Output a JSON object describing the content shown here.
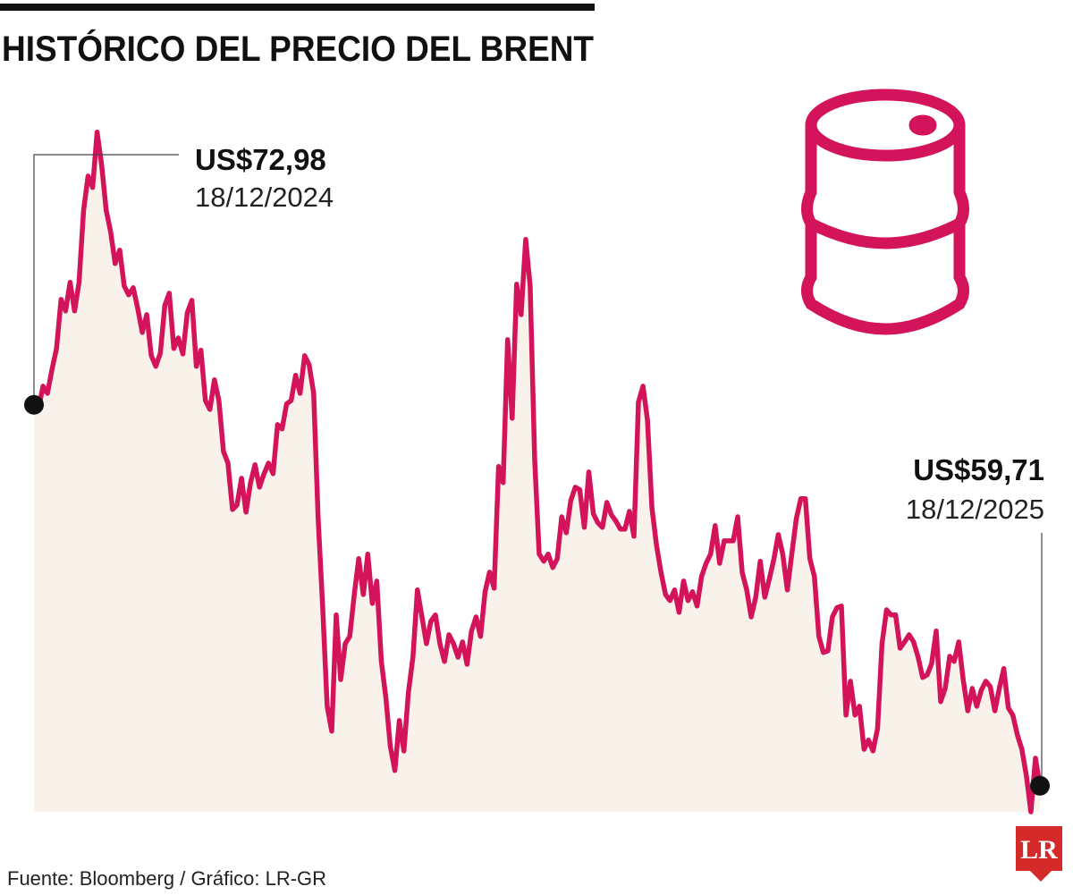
{
  "chart_data": {
    "type": "area",
    "title": "HISTÓRICO DEL PRECIO DEL BRENT",
    "source": "Fuente: Bloomberg / Gráfico: LR-GR",
    "logo": "LR",
    "color": "#d3145a",
    "fill_color": "#f9f2ea",
    "ylim": [
      58.8,
      83.5
    ],
    "annotations": [
      {
        "label": "US$72,98",
        "date": "18/12/2024"
      },
      {
        "label": "US$59,71",
        "date": "18/12/2025"
      }
    ],
    "values": [
      72.98,
      72.82,
      73.63,
      73.38,
      74.22,
      74.94,
      76.65,
      76.25,
      77.25,
      76.25,
      77.25,
      79.77,
      80.95,
      80.55,
      82.48,
      81.33,
      79.77,
      78.99,
      77.9,
      78.37,
      77.12,
      76.81,
      77.06,
      76.34,
      75.5,
      76.12,
      74.69,
      74.32,
      74.78,
      76.44,
      76.87,
      74.94,
      75.31,
      74.75,
      76.19,
      76.62,
      74.32,
      74.88,
      73.13,
      72.82,
      73.85,
      73.13,
      71.36,
      70.95,
      69.33,
      69.49,
      70.42,
      69.24,
      70.27,
      70.89,
      70.11,
      70.58,
      70.95,
      70.58,
      72.29,
      72.14,
      73.01,
      73.13,
      74.01,
      73.38,
      74.69,
      74.38,
      73.38,
      69.02,
      65.91,
      62.48,
      61.61,
      65.66,
      63.41,
      64.66,
      64.91,
      66.37,
      67.62,
      66.37,
      67.78,
      66.06,
      66.84,
      64.04,
      62.79,
      61.08,
      60.24,
      61.98,
      60.92,
      62.95,
      64.19,
      66.53,
      65.59,
      64.66,
      65.44,
      65.66,
      64.66,
      64.04,
      64.97,
      64.66,
      64.19,
      64.72,
      63.94,
      65.1,
      65.59,
      64.91,
      66.47,
      67.15,
      66.59,
      70.83,
      70.27,
      75.25,
      72.51,
      77.18,
      76.12,
      78.74,
      77.12,
      71.05,
      67.78,
      67.53,
      67.78,
      67.31,
      67.62,
      69.08,
      68.52,
      69.64,
      70.11,
      70.02,
      68.71,
      70.64,
      69.18,
      68.87,
      68.71,
      69.58,
      69.15,
      68.93,
      68.65,
      68.65,
      69.27,
      68.4,
      73.07,
      73.63,
      72.45,
      69.39,
      68.09,
      67.15,
      66.37,
      66.16,
      66.53,
      65.75,
      66.84,
      66.16,
      66.47,
      65.97,
      67.0,
      67.46,
      67.78,
      68.77,
      67.46,
      68.24,
      68.24,
      68.24,
      69.08,
      67.15,
      66.53,
      65.59,
      66.28,
      67.53,
      66.28,
      66.9,
      67.59,
      68.46,
      67.78,
      66.53,
      67.78,
      69.02,
      69.71,
      69.71,
      67.62,
      67.0,
      64.91,
      64.35,
      64.41,
      65.59,
      65.91,
      65.97,
      62.17,
      63.35,
      62.17,
      62.48,
      60.98,
      61.3,
      60.92,
      61.7,
      64.66,
      65.84,
      65.66,
      65.66,
      64.5,
      64.72,
      64.97,
      64.72,
      64.19,
      63.48,
      63.57,
      63.97,
      65.1,
      62.64,
      63.1,
      64.22,
      64.04,
      64.72,
      63.41,
      62.32,
      63.1,
      62.48,
      63.04,
      63.35,
      63.16,
      62.32,
      63.1,
      63.79,
      62.42,
      62.17,
      61.48,
      60.98,
      60.05,
      58.8,
      60.67,
      59.71
    ]
  }
}
